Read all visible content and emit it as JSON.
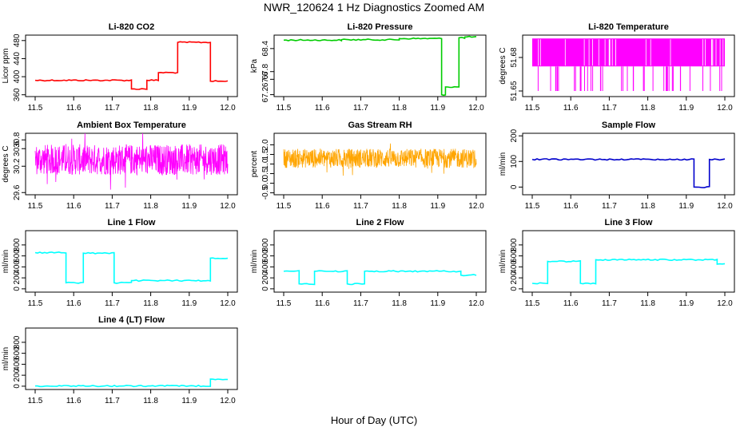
{
  "figure": {
    "title": "NWR_120624  1 Hz Diagnostics Zoomed AM",
    "xlabel": "Hour of Day (UTC)"
  },
  "chart_data": [
    {
      "type": "line",
      "title": "Li-820 CO2",
      "ylabel": "Licor ppm",
      "color": "#ff0000",
      "xlim": [
        11.5,
        12.0
      ],
      "ylim": [
        356,
        492
      ],
      "x_ticks": [
        "11.5",
        "11.6",
        "11.7",
        "11.8",
        "11.9",
        "12.0"
      ],
      "y_ticks": [
        [
          "360",
          360
        ],
        [
          "400",
          400
        ],
        [
          "440",
          440
        ],
        [
          "480",
          480
        ]
      ],
      "segments": [
        [
          11.5,
          11.75,
          392
        ],
        [
          11.75,
          11.79,
          373
        ],
        [
          11.79,
          11.82,
          392
        ],
        [
          11.82,
          11.87,
          409
        ],
        [
          11.87,
          11.955,
          476
        ],
        [
          11.955,
          12.0,
          390
        ]
      ]
    },
    {
      "type": "line",
      "title": "Li-820 Pressure",
      "ylabel": "kPa",
      "color": "#00cc00",
      "xlim": [
        11.5,
        12.0
      ],
      "ylim": [
        67.15,
        68.75
      ],
      "x_ticks": [
        "11.5",
        "11.6",
        "11.7",
        "11.8",
        "11.9",
        "12.0"
      ],
      "y_ticks": [
        [
          "67.2",
          67.2
        ],
        [
          "67.6",
          67.6
        ],
        [
          "67.8",
          67.8
        ],
        [
          "68.4",
          68.4
        ]
      ],
      "segments": [
        [
          11.5,
          11.65,
          68.62
        ],
        [
          11.65,
          11.8,
          68.63
        ],
        [
          11.8,
          11.91,
          68.66
        ],
        [
          11.91,
          11.92,
          67.2
        ],
        [
          11.92,
          11.955,
          67.4
        ],
        [
          11.955,
          11.97,
          68.68
        ],
        [
          11.97,
          12.0,
          68.7
        ]
      ]
    },
    {
      "type": "line",
      "title": "Li-820 Temperature",
      "ylabel": "degrees C",
      "color": "#ff00ff",
      "xlim": [
        11.5,
        12.0
      ],
      "ylim": [
        51.645,
        51.7
      ],
      "x_ticks": [
        "11.5",
        "11.6",
        "11.7",
        "11.8",
        "11.9",
        "12.0"
      ],
      "y_ticks": [
        [
          "51.65",
          51.65
        ],
        [
          "51.68",
          51.68
        ]
      ],
      "band": [
        51.672,
        51.697
      ]
    },
    {
      "type": "line",
      "title": "Ambient Box Temperature",
      "ylabel": "degrees C",
      "color": "#ff00ff",
      "xlim": [
        11.5,
        12.0
      ],
      "ylim": [
        29.55,
        30.95
      ],
      "x_ticks": [
        "11.5",
        "11.6",
        "11.7",
        "11.8",
        "11.9",
        "12.0"
      ],
      "y_ticks": [
        [
          "29.6",
          29.6
        ],
        [
          "30.2",
          30.2
        ],
        [
          "30.6",
          30.6
        ],
        [
          "30.8",
          30.8
        ]
      ],
      "band": [
        30.0,
        30.7
      ]
    },
    {
      "type": "line",
      "title": "Gas Stream RH",
      "ylabel": "percent",
      "color": "#ffa500",
      "xlim": [
        11.5,
        12.0
      ],
      "ylim": [
        -0.6,
        2.6
      ],
      "x_ticks": [
        "11.5",
        "11.6",
        "11.7",
        "11.8",
        "11.9",
        "12.0"
      ],
      "y_ticks": [
        [
          "-0.5",
          -0.5
        ],
        [
          "0.0",
          0.0
        ],
        [
          "0.5",
          0.5
        ],
        [
          "1.0",
          1.0
        ],
        [
          "1.5",
          1.5
        ],
        [
          "2.0",
          2.0
        ]
      ],
      "band": [
        0.8,
        1.8
      ]
    },
    {
      "type": "line",
      "title": "Sample Flow",
      "ylabel": "ml/min",
      "color": "#0000cc",
      "xlim": [
        11.5,
        12.0
      ],
      "ylim": [
        -30,
        210
      ],
      "x_ticks": [
        "11.5",
        "11.6",
        "11.7",
        "11.8",
        "11.9",
        "12.0"
      ],
      "y_ticks": [
        [
          "0",
          0
        ],
        [
          "100",
          100
        ],
        [
          "200",
          200
        ]
      ],
      "segments": [
        [
          11.5,
          11.92,
          108
        ],
        [
          11.92,
          11.96,
          0
        ],
        [
          11.96,
          12.0,
          108
        ]
      ]
    },
    {
      "type": "line",
      "title": "Line 1 Flow",
      "ylabel": "ml/min",
      "color": "#00ffff",
      "xlim": [
        11.5,
        12.0
      ],
      "ylim": [
        -60,
        1060
      ],
      "x_ticks": [
        "11.5",
        "11.6",
        "11.7",
        "11.8",
        "11.9",
        "12.0"
      ],
      "y_ticks": [
        [
          "0",
          0
        ],
        [
          "200",
          200
        ],
        [
          "400",
          400
        ],
        [
          "600",
          600
        ],
        [
          "800",
          800
        ]
      ],
      "segments": [
        [
          11.5,
          11.58,
          660
        ],
        [
          11.58,
          11.625,
          110
        ],
        [
          11.625,
          11.705,
          650
        ],
        [
          11.705,
          11.75,
          110
        ],
        [
          11.75,
          11.955,
          150
        ],
        [
          11.955,
          12.0,
          560
        ]
      ]
    },
    {
      "type": "line",
      "title": "Line 2 Flow",
      "ylabel": "ml/min",
      "color": "#00ffff",
      "xlim": [
        11.5,
        12.0
      ],
      "ylim": [
        -60,
        1060
      ],
      "x_ticks": [
        "11.5",
        "11.6",
        "11.7",
        "11.8",
        "11.9",
        "12.0"
      ],
      "y_ticks": [
        [
          "0",
          0
        ],
        [
          "200",
          200
        ],
        [
          "400",
          400
        ],
        [
          "600",
          600
        ],
        [
          "800",
          800
        ]
      ],
      "segments": [
        [
          11.5,
          11.54,
          320
        ],
        [
          11.54,
          11.58,
          90
        ],
        [
          11.58,
          11.665,
          320
        ],
        [
          11.665,
          11.71,
          90
        ],
        [
          11.71,
          11.96,
          320
        ],
        [
          11.96,
          12.0,
          250
        ]
      ]
    },
    {
      "type": "line",
      "title": "Line 3 Flow",
      "ylabel": "ml/min",
      "color": "#00ffff",
      "xlim": [
        11.5,
        12.0
      ],
      "ylim": [
        -60,
        1060
      ],
      "x_ticks": [
        "11.5",
        "11.6",
        "11.7",
        "11.8",
        "11.9",
        "12.0"
      ],
      "y_ticks": [
        [
          "0",
          0
        ],
        [
          "200",
          200
        ],
        [
          "400",
          400
        ],
        [
          "600",
          600
        ],
        [
          "800",
          800
        ]
      ],
      "segments": [
        [
          11.5,
          11.54,
          100
        ],
        [
          11.54,
          11.625,
          500
        ],
        [
          11.625,
          11.665,
          100
        ],
        [
          11.665,
          11.98,
          530
        ],
        [
          11.98,
          12.0,
          450
        ]
      ]
    },
    {
      "type": "line",
      "title": "Line 4 (LT) Flow",
      "ylabel": "ml/min",
      "color": "#00ffff",
      "xlim": [
        11.5,
        12.0
      ],
      "ylim": [
        -60,
        1060
      ],
      "x_ticks": [
        "11.5",
        "11.6",
        "11.7",
        "11.8",
        "11.9",
        "12.0"
      ],
      "y_ticks": [
        [
          "0",
          0
        ],
        [
          "200",
          200
        ],
        [
          "400",
          400
        ],
        [
          "600",
          600
        ],
        [
          "800",
          800
        ]
      ],
      "segments": [
        [
          11.5,
          11.955,
          5
        ],
        [
          11.955,
          12.0,
          130
        ]
      ]
    }
  ]
}
